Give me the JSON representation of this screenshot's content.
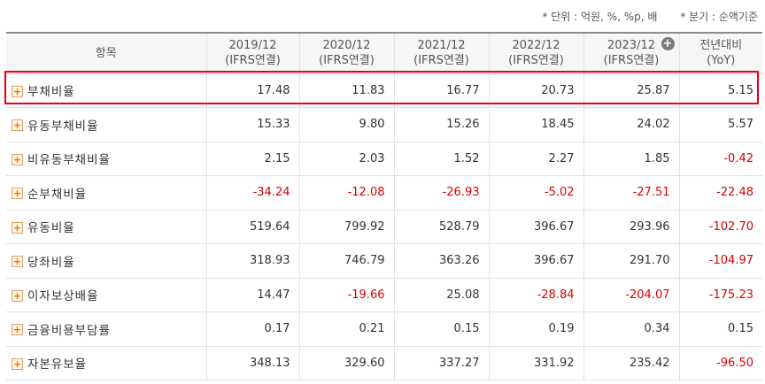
{
  "unit_note": {
    "unit": "* 단위 : 억원, %, %p, 배",
    "period": "* 분기 : 순액기준"
  },
  "header": {
    "item_label": "항목",
    "columns": [
      {
        "period": "2019/12",
        "basis": "(IFRS연결)"
      },
      {
        "period": "2020/12",
        "basis": "(IFRS연결)"
      },
      {
        "period": "2021/12",
        "basis": "(IFRS연결)"
      },
      {
        "period": "2022/12",
        "basis": "(IFRS연결)"
      },
      {
        "period": "2023/12",
        "basis": "(IFRS연결)"
      },
      {
        "period": "전년대비",
        "basis": "(YoY)"
      }
    ],
    "expand_icon": "plus-circle-icon"
  },
  "rows": [
    {
      "label": "부채비율",
      "values": [
        "17.48",
        "11.83",
        "16.77",
        "20.73",
        "25.87",
        "5.15"
      ],
      "negative": [
        false,
        false,
        false,
        false,
        false,
        false
      ],
      "highlighted": true
    },
    {
      "label": "유동부채비율",
      "values": [
        "15.33",
        "9.80",
        "15.26",
        "18.45",
        "24.02",
        "5.57"
      ],
      "negative": [
        false,
        false,
        false,
        false,
        false,
        false
      ]
    },
    {
      "label": "비유동부채비율",
      "values": [
        "2.15",
        "2.03",
        "1.52",
        "2.27",
        "1.85",
        "-0.42"
      ],
      "negative": [
        false,
        false,
        false,
        false,
        false,
        true
      ]
    },
    {
      "label": "순부채비율",
      "values": [
        "-34.24",
        "-12.08",
        "-26.93",
        "-5.02",
        "-27.51",
        "-22.48"
      ],
      "negative": [
        true,
        true,
        true,
        true,
        true,
        true
      ]
    },
    {
      "label": "유동비율",
      "values": [
        "519.64",
        "799.92",
        "528.79",
        "396.67",
        "293.96",
        "-102.70"
      ],
      "negative": [
        false,
        false,
        false,
        false,
        false,
        true
      ]
    },
    {
      "label": "당좌비율",
      "values": [
        "318.93",
        "746.79",
        "363.26",
        "396.67",
        "291.70",
        "-104.97"
      ],
      "negative": [
        false,
        false,
        false,
        false,
        false,
        true
      ]
    },
    {
      "label": "이자보상배율",
      "values": [
        "14.47",
        "-19.66",
        "25.08",
        "-28.84",
        "-204.07",
        "-175.23"
      ],
      "negative": [
        false,
        true,
        false,
        true,
        true,
        true
      ]
    },
    {
      "label": "금융비용부담률",
      "values": [
        "0.17",
        "0.21",
        "0.15",
        "0.19",
        "0.34",
        "0.15"
      ],
      "negative": [
        false,
        false,
        false,
        false,
        false,
        false
      ]
    },
    {
      "label": "자본유보율",
      "values": [
        "348.13",
        "329.60",
        "337.27",
        "331.92",
        "235.42",
        "-96.50"
      ],
      "negative": [
        false,
        false,
        false,
        false,
        false,
        true
      ]
    }
  ],
  "colors": {
    "negative": "#dd0000",
    "highlight_border": "#e60012",
    "expand_icon": "#e67300"
  }
}
